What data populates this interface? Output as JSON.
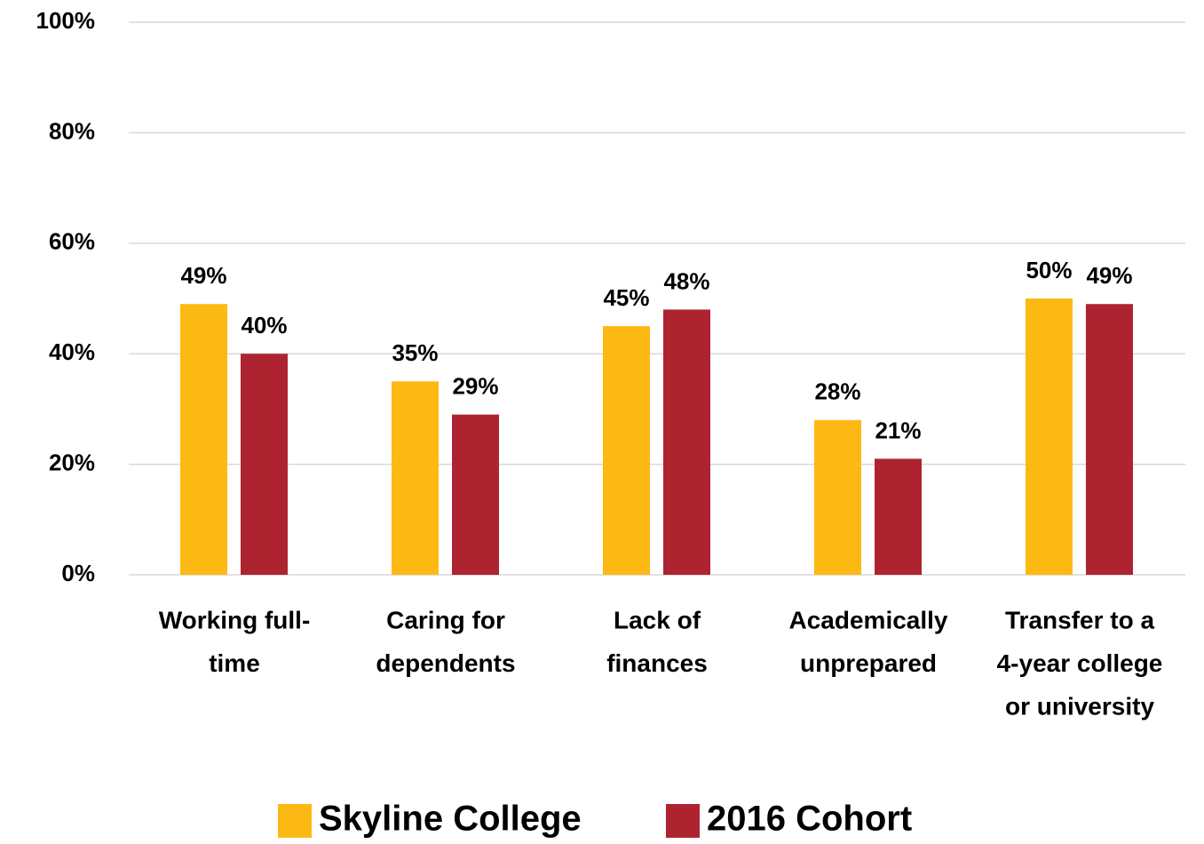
{
  "chart_data": {
    "type": "bar",
    "categories": [
      [
        "Working full-",
        "time"
      ],
      [
        "Caring for",
        "dependents"
      ],
      [
        "Lack of",
        "finances"
      ],
      [
        "Academically",
        "unprepared"
      ],
      [
        "Transfer to a",
        "4-year college",
        "or university"
      ]
    ],
    "series": [
      {
        "name": "Skyline College",
        "color": "#FDB913",
        "values": [
          49,
          35,
          45,
          28,
          50
        ],
        "value_labels": [
          "49%",
          "35%",
          "45%",
          "28%",
          "50%"
        ]
      },
      {
        "name": "2016 Cohort",
        "color": "#AE2330",
        "values": [
          40,
          29,
          48,
          21,
          49
        ],
        "value_labels": [
          "40%",
          "29%",
          "48%",
          "21%",
          "49%"
        ]
      }
    ],
    "ylim": [
      0,
      100
    ],
    "yticks": [
      {
        "value": 0,
        "label": "0%"
      },
      {
        "value": 20,
        "label": "20%"
      },
      {
        "value": 40,
        "label": "40%"
      },
      {
        "value": 60,
        "label": "60%"
      },
      {
        "value": 80,
        "label": "80%"
      },
      {
        "value": 100,
        "label": "100%"
      }
    ],
    "grid": true,
    "legend": "bottom"
  }
}
